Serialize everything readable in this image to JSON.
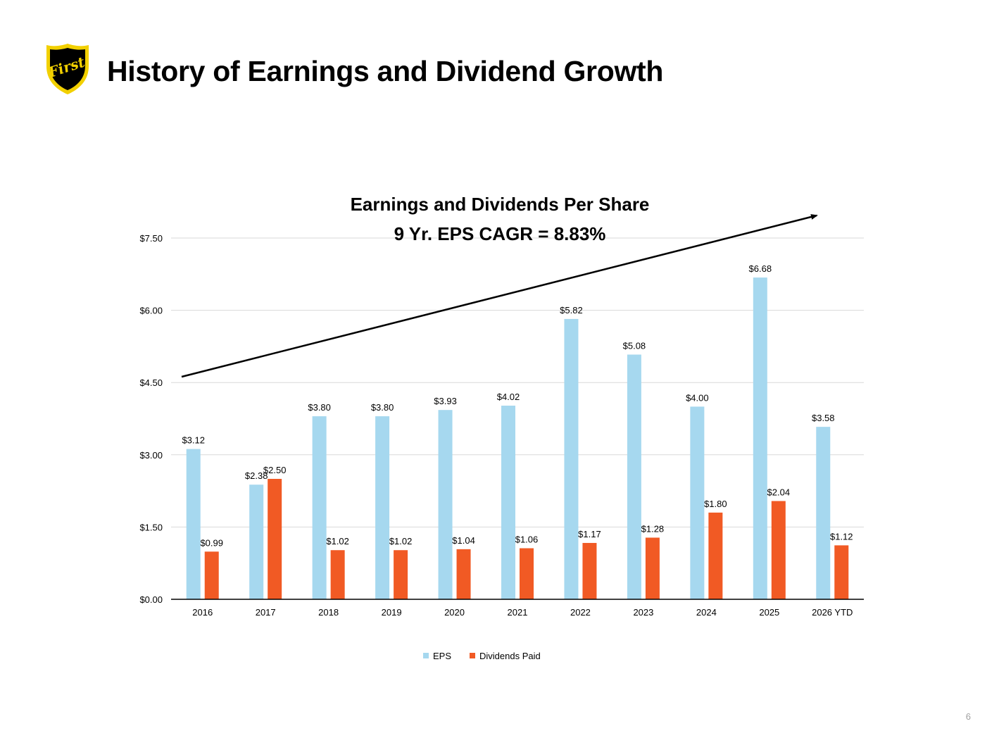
{
  "header": {
    "title": "History of Earnings and Dividend Growth",
    "logo_text": "First",
    "logo_icon": "shield-logo-icon"
  },
  "colors": {
    "eps": "#a6d8ef",
    "dividends": "#f15a24",
    "grid": "#d9d9d9",
    "axis": "#000000",
    "logo_gold": "#f2d000",
    "logo_black": "#000000"
  },
  "chart_data": {
    "type": "bar",
    "title": "Earnings and Dividends Per Share",
    "subtitle": "9 Yr. EPS CAGR = 8.83%",
    "categories": [
      "2016",
      "2017",
      "2018",
      "2019",
      "2020",
      "2021",
      "2022",
      "2023",
      "2024",
      "2025",
      "2026 YTD"
    ],
    "series": [
      {
        "name": "EPS",
        "values": [
          3.12,
          2.38,
          3.8,
          3.8,
          3.93,
          4.02,
          5.82,
          5.08,
          4.0,
          6.68,
          3.58
        ],
        "labels": [
          "$3.12",
          "$2.38",
          "$3.80",
          "$3.80",
          "$3.93",
          "$4.02",
          "$5.82",
          "$5.08",
          "$4.00",
          "$6.68",
          "$3.58"
        ]
      },
      {
        "name": "Dividends Paid",
        "values": [
          0.99,
          2.5,
          1.02,
          1.02,
          1.04,
          1.06,
          1.17,
          1.28,
          1.8,
          2.04,
          1.12
        ],
        "labels": [
          "$0.99",
          "$2.50",
          "$1.02",
          "$1.02",
          "$1.04",
          "$1.06",
          "$1.17",
          "$1.28",
          "$1.80",
          "$2.04",
          "$1.12"
        ]
      }
    ],
    "y_ticks": [
      0,
      1.5,
      3,
      4.5,
      6,
      7.5
    ],
    "y_tick_labels": [
      "$0.00",
      "$1.50",
      "$3.00",
      "$4.50",
      "$6.00",
      "$7.50"
    ],
    "ylim": [
      0,
      7.5
    ],
    "grid": true,
    "legend_position": "bottom-center",
    "annotation": "trend-arrow"
  },
  "footer": {
    "page_number": "6"
  }
}
